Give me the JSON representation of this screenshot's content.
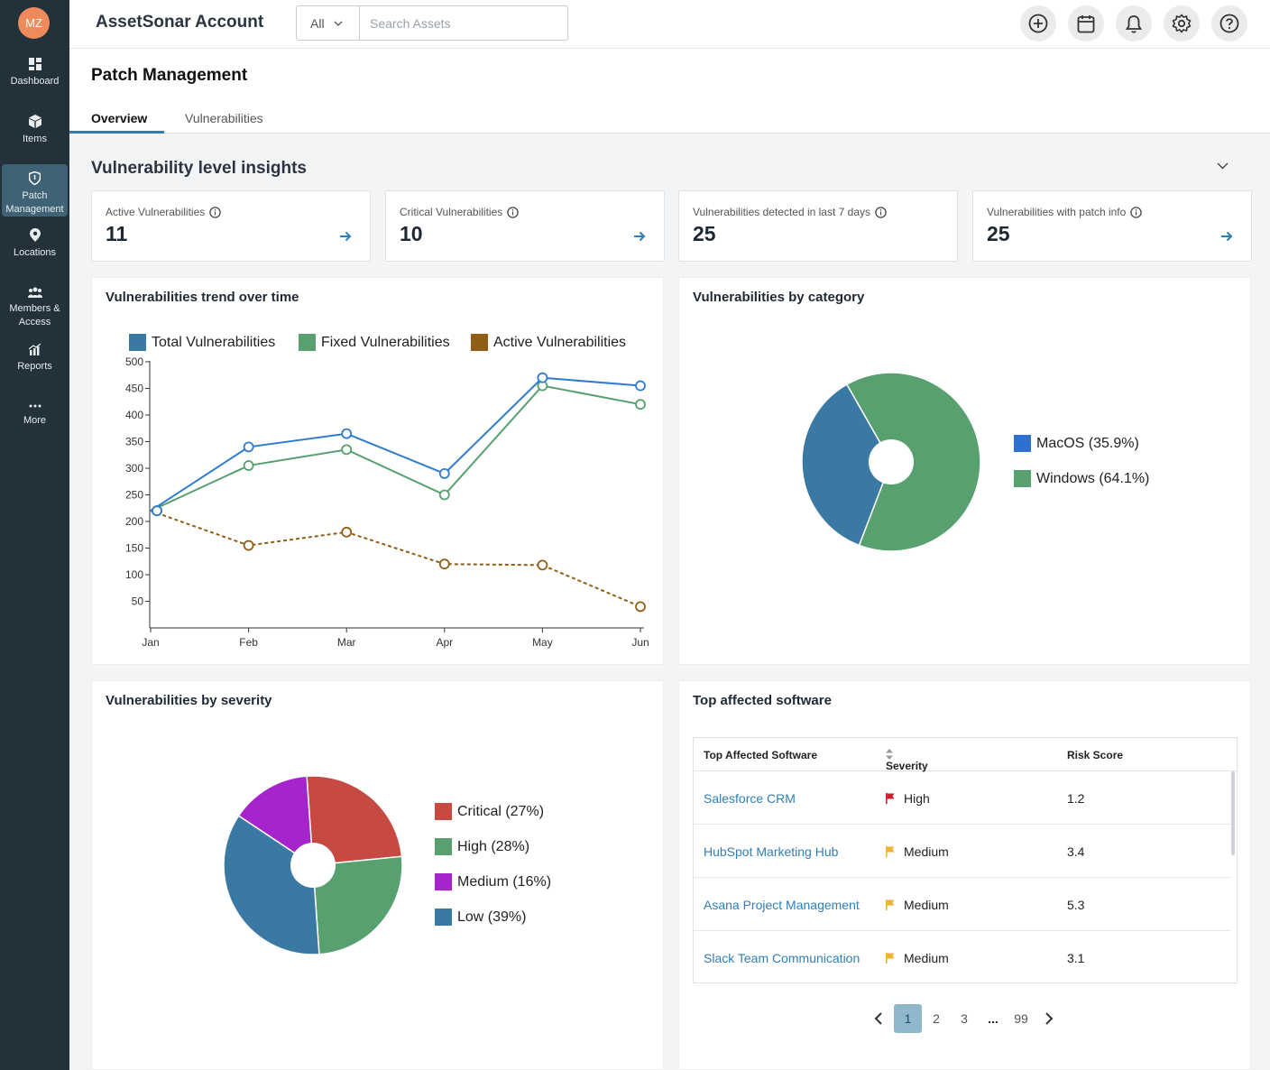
{
  "sidebar": {
    "avatar_initials": "MZ",
    "items": [
      {
        "label": "Dashboard",
        "icon": "dashboard-icon"
      },
      {
        "label": "Items",
        "icon": "cube-icon"
      },
      {
        "label": "Patch Management",
        "icon": "shield-icon",
        "active": true
      },
      {
        "label": "Locations",
        "icon": "location-pin-icon"
      },
      {
        "label": "Members & Access",
        "icon": "people-icon"
      },
      {
        "label": "Reports",
        "icon": "reports-icon"
      },
      {
        "label": "More",
        "icon": "more-dots-icon"
      }
    ]
  },
  "header": {
    "title": "AssetSonar Account",
    "search_scope": "All",
    "search_placeholder": "Search Assets",
    "buttons": [
      "add-circle-icon",
      "calendar-icon",
      "bell-icon",
      "gear-icon",
      "help-icon"
    ]
  },
  "page": {
    "title": "Patch Management",
    "tabs": [
      {
        "label": "Overview",
        "active": true
      },
      {
        "label": "Vulnerabilities",
        "active": false
      }
    ],
    "section_title": "Vulnerability level insights"
  },
  "stats": [
    {
      "label": "Active Vulnerabilities",
      "value": "11",
      "has_arrow": true
    },
    {
      "label": "Critical Vulnerabilities",
      "value": "10",
      "has_arrow": true
    },
    {
      "label": "Vulnerabilities detected in last 7 days",
      "value": "25",
      "has_arrow": false
    },
    {
      "label": "Vulnerabilities with patch info",
      "value": "25",
      "has_arrow": true
    }
  ],
  "panels": {
    "trend": "Vulnerabilities trend over time",
    "category": "Vulnerabilities by category",
    "severity": "Vulnerabilities by severity",
    "software": "Top affected software"
  },
  "chart_data": [
    {
      "type": "line",
      "title": "Vulnerabilities trend over time",
      "categories": [
        "Jan",
        "Feb",
        "Mar",
        "Apr",
        "May",
        "Jun"
      ],
      "yticks": [
        50,
        100,
        150,
        200,
        250,
        300,
        350,
        400,
        450,
        500
      ],
      "ylim": [
        0,
        500
      ],
      "legend_position": "top",
      "series": [
        {
          "name": "Total Vulnerabilities",
          "values": [
            220,
            340,
            365,
            290,
            470,
            455
          ],
          "color": "#2f7ccf",
          "dashed": false
        },
        {
          "name": "Fixed Vulnerabilities",
          "values": [
            220,
            305,
            335,
            250,
            455,
            420
          ],
          "color": "#56a06f",
          "dashed": false
        },
        {
          "name": "Active Vulnerabilities",
          "values": [
            220,
            155,
            180,
            120,
            118,
            40
          ],
          "color": "#8f5f17",
          "dashed": true
        }
      ]
    },
    {
      "type": "pie",
      "title": "Vulnerabilities by category",
      "donut": true,
      "legend_position": "right",
      "slices": [
        {
          "label": "MacOS (35.9%)",
          "value": 35.9,
          "color": "#3a79a3"
        },
        {
          "label": "Windows (64.1%)",
          "value": 64.1,
          "color": "#58a070"
        }
      ],
      "legend_colors": [
        "#2f6fd0",
        "#58a070"
      ]
    },
    {
      "type": "pie",
      "title": "Vulnerabilities by severity",
      "donut": true,
      "legend_position": "right",
      "slices": [
        {
          "label": "Critical (27%)",
          "value": 27,
          "color": "#c64a42"
        },
        {
          "label": "High (28%)",
          "value": 28,
          "color": "#58a070"
        },
        {
          "label": "Low (39%)",
          "value": 39,
          "color": "#3a79a3"
        },
        {
          "label": "Medium (16%)",
          "value": 16,
          "color": "#a524cc"
        }
      ],
      "legend_order": [
        "Critical (27%)",
        "High (28%)",
        "Medium (16%)",
        "Low (39%)"
      ]
    }
  ],
  "table": {
    "columns": [
      "Top Affected Software",
      "Severity",
      "Risk Score"
    ],
    "rows": [
      {
        "software": "Salesforce CRM",
        "severity": "High",
        "flag_color": "#c8202c",
        "risk": "1.2"
      },
      {
        "software": "HubSpot Marketing Hub",
        "severity": "Medium",
        "flag_color": "#f0b030",
        "risk": "3.4"
      },
      {
        "software": "Asana Project Management",
        "severity": "Medium",
        "flag_color": "#f0b030",
        "risk": "5.3"
      },
      {
        "software": "Slack Team Communication",
        "severity": "Medium",
        "flag_color": "#f0b030",
        "risk": "3.1"
      }
    ]
  },
  "pagination": {
    "pages": [
      "1",
      "2",
      "3",
      "...",
      "99"
    ],
    "current": "1"
  }
}
